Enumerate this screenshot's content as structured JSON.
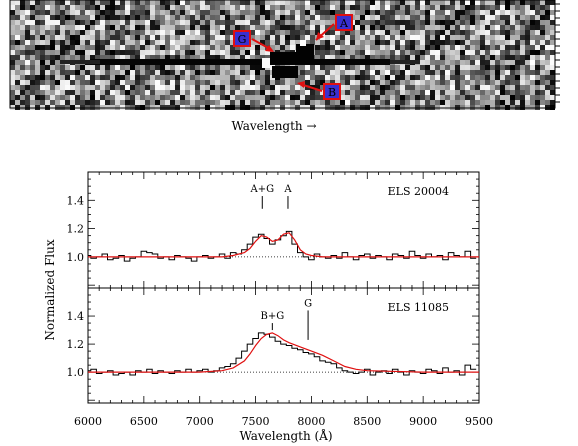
{
  "spectrum_image": {
    "xlabel": "Wavelength →",
    "markers": [
      "A",
      "G",
      "B"
    ],
    "marker_fill": "#3a2fd0",
    "marker_border": "#e01010",
    "arrow_color": "#e01010"
  },
  "chart_data": [
    {
      "type": "line",
      "name": "ELS 20004",
      "label": "ELS 20004",
      "xlim": [
        6000,
        9500
      ],
      "ylim": [
        0.78,
        1.6
      ],
      "yticks": [
        1.0,
        1.2,
        1.4
      ],
      "ytick_labels": [
        "1.0",
        "1.2",
        "1.4"
      ],
      "continuum": 1.0,
      "line_labels": [
        {
          "text": "A+G",
          "x": 7560,
          "tick_y": [
            1.34,
            1.43
          ]
        },
        {
          "text": "A",
          "x": 7790,
          "tick_y": [
            1.34,
            1.43
          ]
        }
      ],
      "observed": {
        "x": [
          6000,
          6050,
          6100,
          6150,
          6200,
          6250,
          6300,
          6350,
          6400,
          6450,
          6500,
          6550,
          6600,
          6650,
          6700,
          6750,
          6800,
          6850,
          6900,
          6950,
          7000,
          7050,
          7100,
          7150,
          7200,
          7250,
          7300,
          7350,
          7400,
          7450,
          7500,
          7550,
          7600,
          7650,
          7700,
          7750,
          7800,
          7850,
          7900,
          7950,
          8000,
          8050,
          8100,
          8150,
          8200,
          8250,
          8300,
          8350,
          8400,
          8450,
          8500,
          8550,
          8600,
          8650,
          8700,
          8750,
          8800,
          8850,
          8900,
          8950,
          9000,
          9050,
          9100,
          9150,
          9200,
          9250,
          9300,
          9350,
          9400,
          9450
        ],
        "y": [
          1.01,
          0.99,
          1.0,
          1.02,
          0.98,
          0.99,
          1.01,
          0.97,
          0.99,
          1.0,
          1.04,
          1.03,
          1.02,
          0.99,
          1.0,
          0.98,
          1.01,
          1.0,
          0.99,
          0.97,
          1.0,
          1.01,
          0.99,
          1.0,
          1.02,
          0.99,
          1.03,
          1.02,
          1.05,
          1.09,
          1.14,
          1.16,
          1.13,
          1.09,
          1.12,
          1.15,
          1.18,
          1.09,
          1.03,
          1.0,
          0.98,
          1.02,
          1.0,
          0.99,
          1.01,
          0.99,
          1.03,
          1.0,
          0.98,
          1.01,
          1.02,
          0.99,
          1.01,
          1.0,
          0.98,
          1.02,
          1.01,
          0.99,
          1.04,
          1.01,
          0.99,
          1.02,
          1.0,
          1.01,
          0.98,
          1.03,
          1.01,
          1.0,
          1.04,
          0.99
        ]
      },
      "model": {
        "x": [
          6000,
          6500,
          7000,
          7200,
          7300,
          7400,
          7450,
          7500,
          7550,
          7600,
          7650,
          7700,
          7750,
          7800,
          7850,
          7900,
          7950,
          8000,
          8100,
          8300,
          8600,
          9000,
          9500
        ],
        "y": [
          1.0,
          1.0,
          1.0,
          1.0,
          1.01,
          1.03,
          1.06,
          1.11,
          1.15,
          1.14,
          1.11,
          1.12,
          1.16,
          1.17,
          1.12,
          1.05,
          1.02,
          1.01,
          1.0,
          1.0,
          1.0,
          1.0,
          1.0
        ]
      }
    },
    {
      "type": "line",
      "name": "ELS 11085",
      "label": "ELS 11085",
      "xlim": [
        6000,
        9500
      ],
      "ylim": [
        0.78,
        1.6
      ],
      "yticks": [
        1.0,
        1.2,
        1.4
      ],
      "ytick_labels": [
        "1.0",
        "1.2",
        "1.4"
      ],
      "xticks": [
        6000,
        6500,
        7000,
        7500,
        8000,
        8500,
        9000,
        9500
      ],
      "xtick_labels": [
        "6000",
        "6500",
        "7000",
        "7500",
        "8000",
        "8500",
        "9000",
        "9500"
      ],
      "xlabel": "Wavelength (Å)",
      "continuum": 1.0,
      "line_labels": [
        {
          "text": "B+G",
          "x": 7650,
          "tick_y": [
            1.3,
            1.35
          ]
        },
        {
          "text": "G",
          "x": 7970,
          "tick_y": [
            1.23,
            1.44
          ]
        }
      ],
      "observed": {
        "x": [
          6000,
          6050,
          6100,
          6150,
          6200,
          6250,
          6300,
          6350,
          6400,
          6450,
          6500,
          6550,
          6600,
          6650,
          6700,
          6750,
          6800,
          6850,
          6900,
          6950,
          7000,
          7050,
          7100,
          7150,
          7200,
          7250,
          7300,
          7350,
          7400,
          7450,
          7500,
          7550,
          7600,
          7650,
          7700,
          7750,
          7800,
          7850,
          7900,
          7950,
          8000,
          8050,
          8100,
          8150,
          8200,
          8250,
          8300,
          8350,
          8400,
          8450,
          8500,
          8550,
          8600,
          8650,
          8700,
          8750,
          8800,
          8850,
          8900,
          8950,
          9000,
          9050,
          9100,
          9150,
          9200,
          9250,
          9300,
          9350,
          9400,
          9450
        ],
        "y": [
          1.01,
          1.02,
          0.99,
          1.0,
          1.01,
          0.98,
          0.99,
          1.0,
          0.98,
          1.01,
          1.0,
          1.02,
          0.99,
          1.01,
          1.0,
          0.99,
          1.01,
          1.0,
          1.02,
          1.0,
          1.01,
          1.02,
          1.0,
          1.01,
          1.03,
          1.04,
          1.06,
          1.1,
          1.15,
          1.2,
          1.24,
          1.28,
          1.27,
          1.25,
          1.22,
          1.2,
          1.19,
          1.17,
          1.16,
          1.14,
          1.13,
          1.11,
          1.08,
          1.07,
          1.06,
          1.03,
          1.01,
          1.0,
          0.99,
          1.0,
          1.02,
          0.98,
          1.0,
          1.01,
          0.99,
          1.02,
          1.0,
          0.98,
          1.01,
          1.0,
          0.99,
          1.02,
          1.01,
          0.99,
          1.03,
          1.0,
          1.01,
          0.98,
          1.05,
          1.02
        ]
      },
      "model": {
        "x": [
          6000,
          6500,
          7000,
          7200,
          7300,
          7400,
          7450,
          7500,
          7550,
          7600,
          7650,
          7700,
          7750,
          7800,
          7900,
          8000,
          8100,
          8200,
          8300,
          8400,
          8500,
          9000,
          9500
        ],
        "y": [
          1.0,
          1.0,
          1.0,
          1.01,
          1.03,
          1.08,
          1.13,
          1.19,
          1.24,
          1.27,
          1.28,
          1.26,
          1.23,
          1.21,
          1.18,
          1.15,
          1.12,
          1.08,
          1.04,
          1.02,
          1.01,
          1.0,
          1.0
        ]
      }
    }
  ],
  "shared_ylabel": "Normalized Flux",
  "colors": {
    "observed": "#000000",
    "model": "#e01010",
    "continuum": "#000000"
  }
}
